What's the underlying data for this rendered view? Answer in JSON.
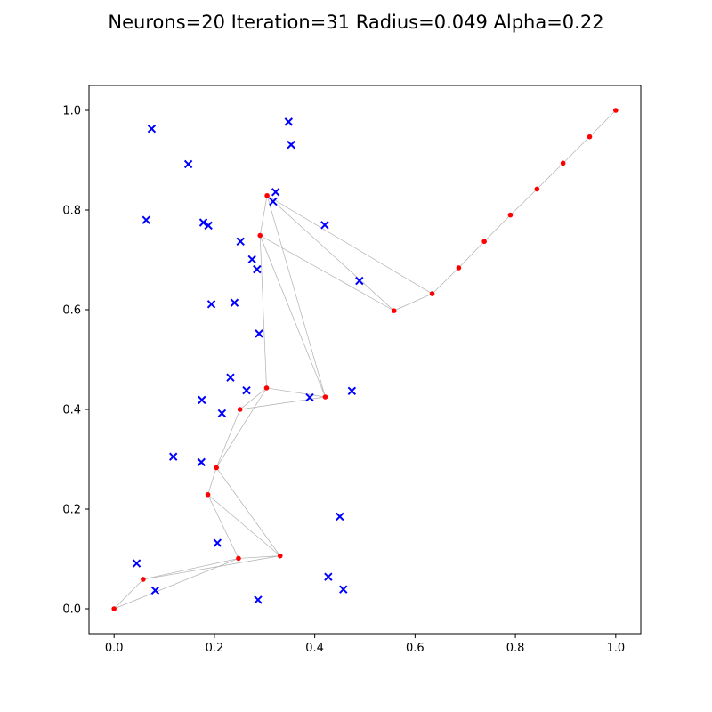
{
  "chart_data": {
    "type": "scatter",
    "title": "Neurons=20 Iteration=31 Radius=0.049 Alpha=0.22",
    "xlabel": "",
    "ylabel": "",
    "xlim": [
      -0.05,
      1.05
    ],
    "ylim": [
      -0.05,
      1.05
    ],
    "x_ticks": [
      "0.0",
      "0.2",
      "0.4",
      "0.6",
      "0.8",
      "1.0"
    ],
    "y_ticks": [
      "0.0",
      "0.2",
      "0.4",
      "0.6",
      "0.8",
      "1.0"
    ],
    "grid": false,
    "series": [
      {
        "marker": "x",
        "color": "#0000ff",
        "points": [
          [
            0.075,
            0.963
          ],
          [
            0.348,
            0.977
          ],
          [
            0.353,
            0.931
          ],
          [
            0.148,
            0.892
          ],
          [
            0.322,
            0.836
          ],
          [
            0.317,
            0.817
          ],
          [
            0.064,
            0.78
          ],
          [
            0.178,
            0.775
          ],
          [
            0.188,
            0.769
          ],
          [
            0.42,
            0.77
          ],
          [
            0.252,
            0.737
          ],
          [
            0.275,
            0.701
          ],
          [
            0.285,
            0.681
          ],
          [
            0.489,
            0.658
          ],
          [
            0.194,
            0.611
          ],
          [
            0.24,
            0.614
          ],
          [
            0.289,
            0.552
          ],
          [
            0.232,
            0.464
          ],
          [
            0.264,
            0.438
          ],
          [
            0.39,
            0.424
          ],
          [
            0.474,
            0.437
          ],
          [
            0.175,
            0.419
          ],
          [
            0.215,
            0.392
          ],
          [
            0.118,
            0.305
          ],
          [
            0.174,
            0.294
          ],
          [
            0.45,
            0.185
          ],
          [
            0.206,
            0.132
          ],
          [
            0.045,
            0.091
          ],
          [
            0.082,
            0.037
          ],
          [
            0.427,
            0.064
          ],
          [
            0.457,
            0.039
          ],
          [
            0.287,
            0.018
          ]
        ]
      },
      {
        "marker": "dot",
        "color": "#ff0000",
        "connection_color": "#b0b0b0",
        "neurons": [
          [
            0.0,
            0.0
          ],
          [
            0.058,
            0.059
          ],
          [
            0.248,
            0.101
          ],
          [
            0.331,
            0.106
          ],
          [
            0.187,
            0.229
          ],
          [
            0.204,
            0.283
          ],
          [
            0.251,
            0.4
          ],
          [
            0.304,
            0.443
          ],
          [
            0.421,
            0.425
          ],
          [
            0.291,
            0.749
          ],
          [
            0.305,
            0.829
          ],
          [
            0.558,
            0.598
          ],
          [
            0.634,
            0.632
          ],
          [
            0.687,
            0.684
          ],
          [
            0.738,
            0.737
          ],
          [
            0.79,
            0.79
          ],
          [
            0.843,
            0.842
          ],
          [
            0.895,
            0.894
          ],
          [
            0.948,
            0.947
          ],
          [
            1.0,
            1.0
          ]
        ]
      }
    ]
  }
}
